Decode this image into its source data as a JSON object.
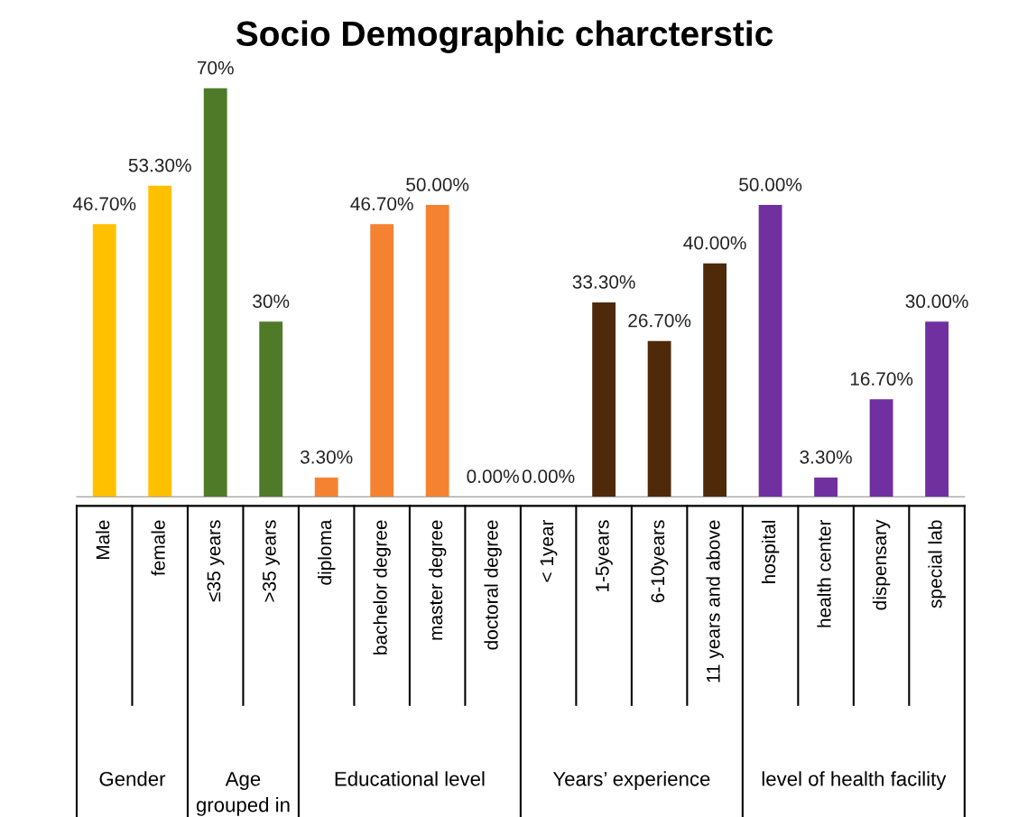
{
  "chart_data": {
    "type": "bar",
    "title": "Socio Demographic charcterstic",
    "categories": [
      "Male",
      "female",
      "≤35 years",
      ">35 years",
      "diploma",
      "bachelor degree",
      "master degree",
      "doctoral degree",
      "< 1year",
      "1-5years",
      "6-10years",
      "11 years and above",
      "hospital",
      "health center",
      "dispensary",
      "special lab"
    ],
    "values": [
      46.7,
      53.3,
      70,
      30,
      3.3,
      46.7,
      50,
      0,
      0,
      33.3,
      26.7,
      40,
      50,
      3.3,
      16.7,
      30
    ],
    "value_labels": [
      "46.70%",
      "53.30%",
      "70%",
      "30%",
      "3.30%",
      "46.70%",
      "50.00%",
      "0.00%",
      "0.00%",
      "33.30%",
      "26.70%",
      "40.00%",
      "50.00%",
      "3.30%",
      "16.70%",
      "30.00%"
    ],
    "colors": [
      "#ffc000",
      "#ffc000",
      "#4f7a28",
      "#4f7a28",
      "#f58230",
      "#f58230",
      "#f58230",
      "#f58230",
      "#4e2a0a",
      "#4e2a0a",
      "#4e2a0a",
      "#4e2a0a",
      "#7030a0",
      "#7030a0",
      "#7030a0",
      "#7030a0"
    ],
    "annotations": [
      "Gender",
      "Age\ngrouped in",
      "Educational level",
      "Years’ experience",
      "level of health facility"
    ],
    "legend": false
  }
}
